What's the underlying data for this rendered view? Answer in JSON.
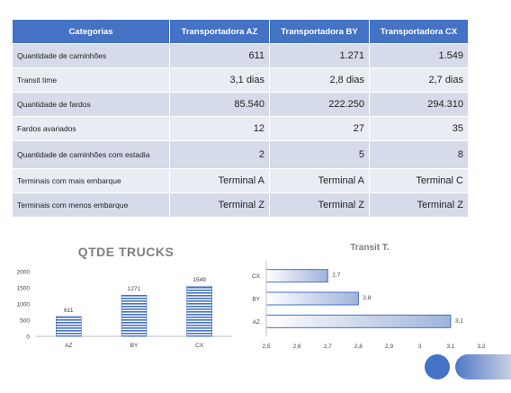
{
  "table": {
    "headers": [
      "Categorias",
      "Transportadora AZ",
      "Transportadora BY",
      "Transportadora CX"
    ],
    "rows": [
      {
        "label": "Quantidade de caminhões",
        "values": [
          "611",
          "1.271",
          "1.549"
        ]
      },
      {
        "label": "Transit time",
        "values": [
          "3,1 dias",
          "2,8 dias",
          "2,7 dias"
        ]
      },
      {
        "label": "Quantidade de fardos",
        "values": [
          "85.540",
          "222.250",
          "294.310"
        ]
      },
      {
        "label": "Fardos avariados",
        "values": [
          "12",
          "27",
          "35"
        ]
      },
      {
        "label": "Quantidade de caminhões com estadia",
        "values": [
          "2",
          "5",
          "8"
        ]
      },
      {
        "label": "Terminais com mais embarque",
        "values": [
          "Terminal A",
          "Terminal A",
          "Terminal C"
        ]
      },
      {
        "label": "Terminais com menos embarque",
        "values": [
          "Terminal Z",
          "Terminal Z",
          "Terminal Z"
        ]
      }
    ]
  },
  "chart_data": [
    {
      "type": "bar",
      "title": "QTDE TRUCKS",
      "categories": [
        "AZ",
        "BY",
        "CX"
      ],
      "values": [
        611,
        1271,
        1549
      ],
      "ylim": [
        0,
        2000
      ],
      "yticks": [
        "0",
        "500",
        "1000",
        "1500",
        "2000"
      ],
      "orientation": "vertical",
      "data_labels": [
        "611",
        "1271",
        "1549"
      ],
      "grid": false,
      "colors": {
        "bar": "#4472c4"
      }
    },
    {
      "type": "bar",
      "title": "Transit T.",
      "orientation": "horizontal",
      "categories": [
        "CX",
        "BY",
        "AZ"
      ],
      "values": [
        2.7,
        2.8,
        3.1
      ],
      "xlim": [
        2.5,
        3.2
      ],
      "xticks": [
        "2,5",
        "2,6",
        "2,7",
        "2,8",
        "2,9",
        "3",
        "3,1",
        "3,2"
      ],
      "data_labels": [
        "2,7",
        "2,8",
        "3,1"
      ],
      "grid": false,
      "colors": {
        "bar_fill_start": "#ffffff",
        "bar_fill_end": "#9fb3dc",
        "bar_border": "#4472c4"
      }
    }
  ]
}
